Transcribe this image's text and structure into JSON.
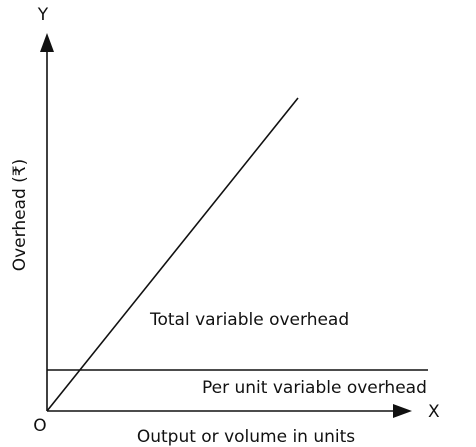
{
  "axes": {
    "y_name": "Y",
    "x_name": "X",
    "origin": "O",
    "y_label": "Overhead (₹)",
    "x_label": "Output or volume in units"
  },
  "lines": {
    "total": "Total variable overhead",
    "per_unit": "Per unit variable overhead"
  }
}
